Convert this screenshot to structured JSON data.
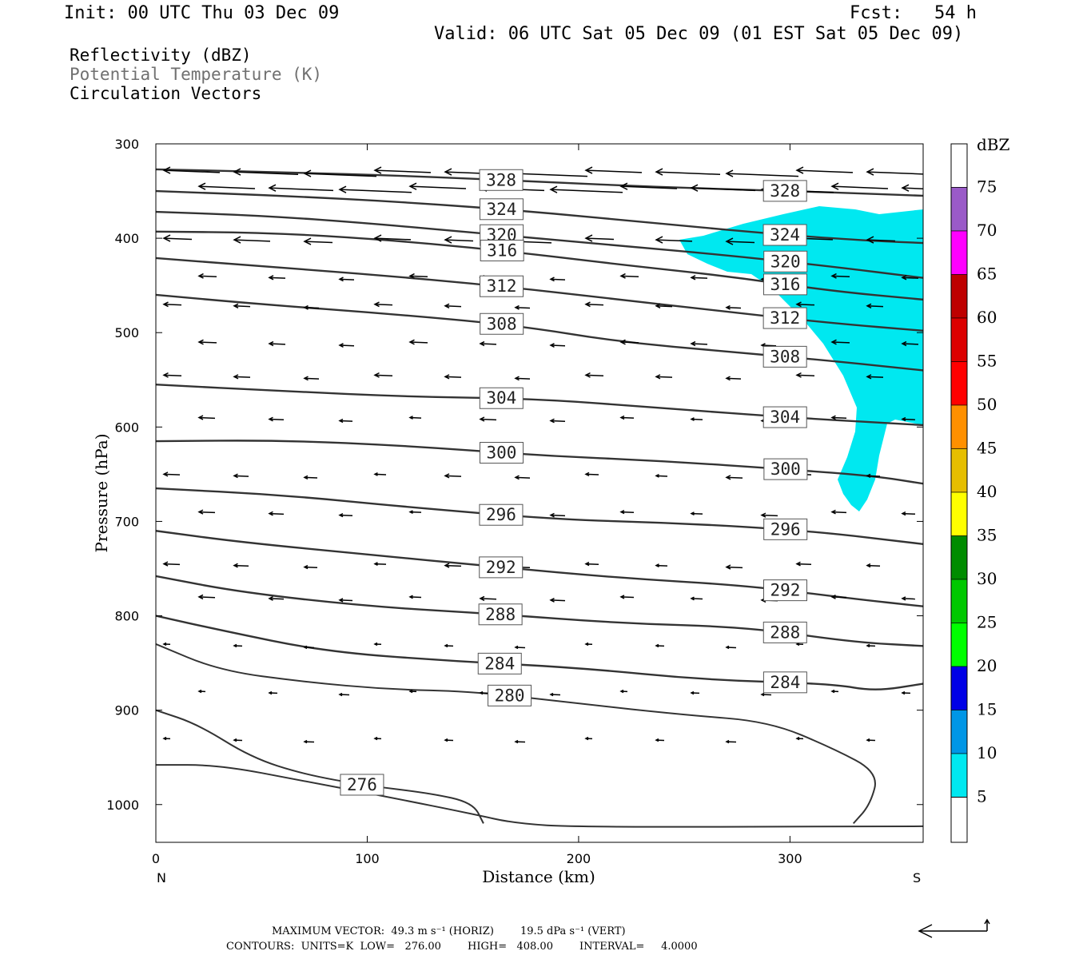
{
  "header": {
    "init": "Init: 00 UTC Thu 03 Dec 09",
    "fcst": "Fcst:   54 h",
    "valid": "Valid: 06 UTC Sat 05 Dec 09 (01 EST Sat 05 Dec 09)"
  },
  "fields": {
    "reflectivity": "Reflectivity (dBZ)",
    "theta": "Potential Temperature (K)",
    "vectors": "Circulation Vectors"
  },
  "colors": {
    "reflectivity_fill": "#00e8f0",
    "contour": "#333333",
    "theta_legend": "#707070"
  },
  "chart_data": {
    "type": "cross-section",
    "xlabel": "Distance (km)",
    "ylabel": "Pressure (hPa)",
    "x_ticks": [
      "0",
      "100",
      "200",
      "300"
    ],
    "y_ticks": [
      "300",
      "400",
      "500",
      "600",
      "700",
      "800",
      "900",
      "1000"
    ],
    "xlim": [
      0,
      363
    ],
    "ylim": [
      1040,
      300
    ],
    "left_end": "N",
    "right_end": "S",
    "colorbar": {
      "unit": "dBZ",
      "labels": [
        "5",
        "10",
        "15",
        "20",
        "25",
        "30",
        "35",
        "40",
        "45",
        "50",
        "55",
        "60",
        "65",
        "70",
        "75"
      ],
      "colors": [
        "#00e8f0",
        "#0096e6",
        "#0000e6",
        "#00ff00",
        "#00c800",
        "#008c00",
        "#ffff00",
        "#e6be00",
        "#ff9000",
        "#ff0000",
        "#dc0000",
        "#be0000",
        "#ff00ff",
        "#9a5ac8",
        "#ffffff"
      ]
    },
    "contours": [
      {
        "label": "328",
        "points": [
          [
            0,
            327
          ],
          [
            60,
            330
          ],
          [
            120,
            334
          ],
          [
            180,
            340
          ],
          [
            240,
            346
          ],
          [
            300,
            350
          ],
          [
            340,
            353
          ],
          [
            363,
            355
          ]
        ]
      },
      {
        "label": "324",
        "points": [
          [
            0,
            350
          ],
          [
            60,
            355
          ],
          [
            120,
            362
          ],
          [
            180,
            372
          ],
          [
            240,
            385
          ],
          [
            300,
            397
          ],
          [
            340,
            403
          ],
          [
            363,
            405
          ]
        ]
      },
      {
        "label": "320",
        "points": [
          [
            0,
            372
          ],
          [
            50,
            376
          ],
          [
            100,
            384
          ],
          [
            160,
            396
          ],
          [
            220,
            408
          ],
          [
            270,
            418
          ],
          [
            320,
            430
          ],
          [
            363,
            442
          ]
        ]
      },
      {
        "label": "316",
        "points": [
          [
            0,
            393
          ],
          [
            50,
            394
          ],
          [
            100,
            400
          ],
          [
            160,
            412
          ],
          [
            220,
            428
          ],
          [
            270,
            440
          ],
          [
            320,
            456
          ],
          [
            363,
            465
          ]
        ]
      },
      {
        "label": "312",
        "points": [
          [
            0,
            421
          ],
          [
            40,
            428
          ],
          [
            100,
            438
          ],
          [
            160,
            450
          ],
          [
            220,
            465
          ],
          [
            270,
            478
          ],
          [
            320,
            490
          ],
          [
            363,
            498
          ]
        ]
      },
      {
        "label": "308",
        "points": [
          [
            0,
            460
          ],
          [
            50,
            470
          ],
          [
            110,
            480
          ],
          [
            170,
            492
          ],
          [
            220,
            510
          ],
          [
            270,
            520
          ],
          [
            320,
            530
          ],
          [
            363,
            540
          ]
        ]
      },
      {
        "label": "304",
        "points": [
          [
            0,
            555
          ],
          [
            60,
            562
          ],
          [
            120,
            568
          ],
          [
            180,
            570
          ],
          [
            240,
            580
          ],
          [
            300,
            590
          ],
          [
            363,
            598
          ]
        ]
      },
      {
        "label": "300",
        "points": [
          [
            0,
            615
          ],
          [
            60,
            614
          ],
          [
            120,
            620
          ],
          [
            180,
            630
          ],
          [
            240,
            636
          ],
          [
            300,
            645
          ],
          [
            340,
            652
          ],
          [
            363,
            660
          ]
        ]
      },
      {
        "label": "296",
        "points": [
          [
            0,
            665
          ],
          [
            60,
            672
          ],
          [
            120,
            685
          ],
          [
            190,
            698
          ],
          [
            250,
            702
          ],
          [
            310,
            710
          ],
          [
            363,
            724
          ]
        ]
      },
      {
        "label": "292",
        "points": [
          [
            0,
            710
          ],
          [
            40,
            722
          ],
          [
            100,
            735
          ],
          [
            160,
            748
          ],
          [
            220,
            760
          ],
          [
            280,
            768
          ],
          [
            330,
            782
          ],
          [
            363,
            790
          ]
        ]
      },
      {
        "label": "288",
        "points": [
          [
            0,
            758
          ],
          [
            40,
            775
          ],
          [
            100,
            790
          ],
          [
            160,
            798
          ],
          [
            220,
            808
          ],
          [
            280,
            812
          ],
          [
            330,
            828
          ],
          [
            363,
            832
          ]
        ]
      },
      {
        "label": "284",
        "points": [
          [
            0,
            800
          ],
          [
            30,
            815
          ],
          [
            80,
            838
          ],
          [
            140,
            848
          ],
          [
            200,
            855
          ],
          [
            260,
            868
          ],
          [
            320,
            872
          ],
          [
            340,
            880
          ],
          [
            363,
            872
          ]
        ]
      },
      {
        "label": "280",
        "points": [
          [
            0,
            830
          ],
          [
            30,
            858
          ],
          [
            70,
            870
          ],
          [
            110,
            878
          ],
          [
            150,
            880
          ],
          [
            200,
            893
          ],
          [
            250,
            905
          ],
          [
            290,
            912
          ],
          [
            320,
            940
          ],
          [
            342,
            966
          ],
          [
            338,
            1000
          ],
          [
            330,
            1020
          ]
        ]
      },
      {
        "label": "276",
        "points": [
          [
            0,
            900
          ],
          [
            20,
            915
          ],
          [
            45,
            950
          ],
          [
            70,
            968
          ],
          [
            100,
            980
          ],
          [
            130,
            988
          ],
          [
            150,
            998
          ],
          [
            155,
            1020
          ]
        ]
      },
      {
        "label": "",
        "points": [
          [
            0,
            958
          ],
          [
            30,
            958
          ],
          [
            70,
            975
          ],
          [
            110,
            992
          ],
          [
            150,
            1010
          ],
          [
            170,
            1020
          ],
          [
            200,
            1024
          ],
          [
            363,
            1023
          ]
        ]
      }
    ],
    "reflectivity_region_dbz": 5,
    "maximum_vector": "MAXIMUM VECTOR:  49.3 m s⁻¹ (HORIZ)        19.5 dPa s⁻¹ (VERT)",
    "contours_info": "CONTOURS:  UNITS=K  LOW=   276.00        HIGH=   408.00        INTERVAL=     4.0000"
  }
}
